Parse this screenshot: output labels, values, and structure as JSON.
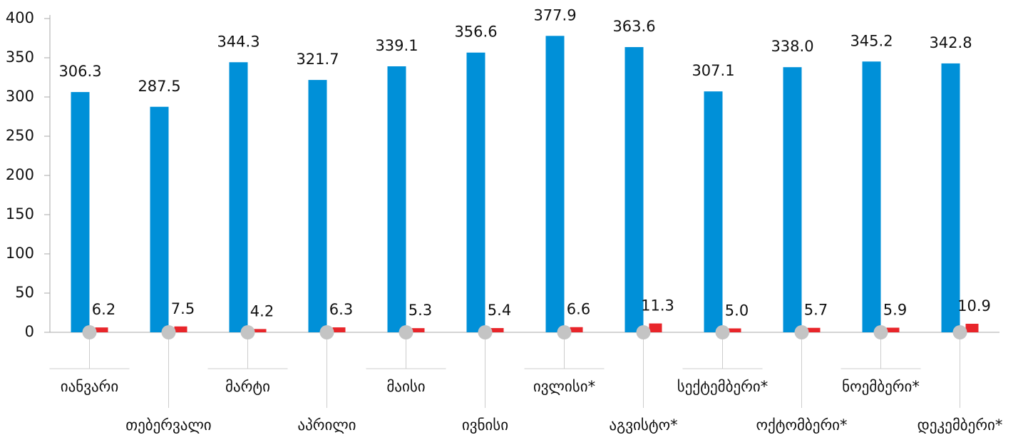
{
  "chart_data": {
    "type": "bar",
    "categories": [
      "იანვარი",
      "თებერვალი",
      "მარტი",
      "აპრილი",
      "მაისი",
      "ივნისი",
      "ივლისი*",
      "აგვისტო*",
      "სექტემბერი*",
      "ოქტომბერი*",
      "ნოემბერი*",
      "დეკემბერი*"
    ],
    "series": [
      {
        "color": "#0090d8",
        "values": [
          306.3,
          287.5,
          344.3,
          321.7,
          339.1,
          356.6,
          377.9,
          363.6,
          307.1,
          338.0,
          345.2,
          342.8
        ],
        "value_labels": [
          "306.3",
          "287.5",
          "344.3",
          "321.7",
          "339.1",
          "356.6",
          "377.9",
          "363.6",
          "307.1",
          "338.0",
          "345.2",
          "342.8"
        ]
      },
      {
        "color": "#e8252a",
        "values": [
          6.2,
          7.5,
          4.2,
          6.3,
          5.3,
          5.4,
          6.6,
          11.3,
          5.0,
          5.7,
          5.9,
          10.9
        ],
        "value_labels": [
          "6.2",
          "7.5",
          "4.2",
          "6.3",
          "5.3",
          "5.4",
          "6.6",
          "11.3",
          "5.0",
          "5.7",
          "5.9",
          "10.9"
        ]
      }
    ],
    "ylim": [
      0,
      400
    ],
    "yticks": [
      0,
      50,
      100,
      150,
      200,
      250,
      300,
      350,
      400
    ],
    "grid": false
  }
}
